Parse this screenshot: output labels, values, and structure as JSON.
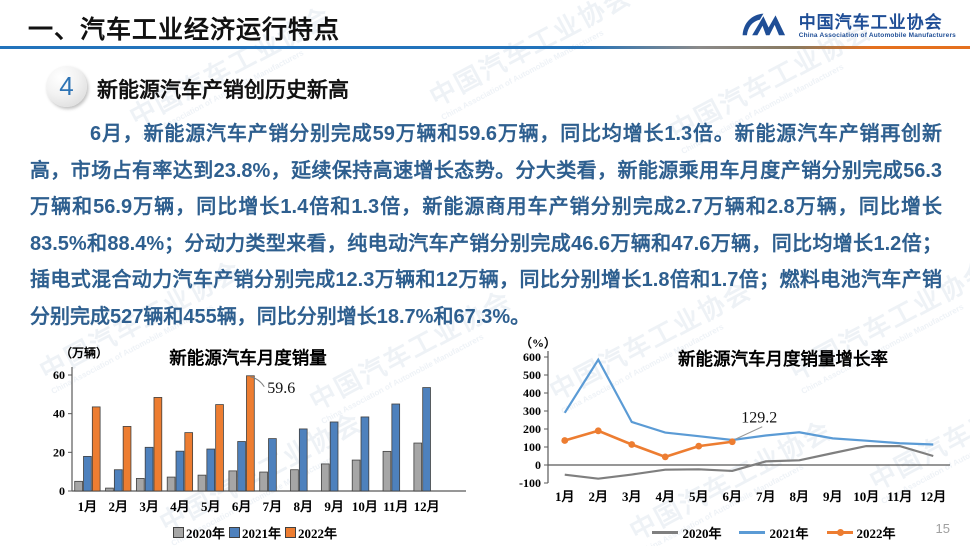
{
  "header": {
    "title": "一、汽车工业经济运行特点",
    "logo": {
      "name_cn": "中国汽车工业协会",
      "name_en": "China Association of Automobile Manufacturers"
    }
  },
  "section": {
    "number": "4",
    "title": "新能源汽车产销创历史新高"
  },
  "paragraph": "6月，新能源汽车产销分别完成59万辆和59.6万辆，同比均增长1.3倍。新能源汽车产销再创新高，市场占有率达到23.8%，延续保持高速增长态势。分大类看，新能源乘用车月度产销分别完成56.3万辆和56.9万辆，同比增长1.4倍和1.3倍，新能源商用车产销分别完成2.7万辆和2.8万辆，同比增长83.5%和88.4%；分动力类型来看，纯电动汽车产销分别完成46.6万辆和47.6万辆，同比均增长1.2倍；插电式混合动力汽车产销分别完成12.3万辆和12万辆，同比分别增长1.8倍和1.7倍；燃料电池汽车产销分别完成527辆和455辆，同比分别增长18.7%和67.3%。",
  "watermark": "中国汽车工业协会",
  "watermark_en": "China Association of Automobile Manufacturers",
  "page_number": "15",
  "colors": {
    "accent_blue": "#2273bb",
    "text_blue": "#2e5f8f",
    "logo_blue": "#1f4e96",
    "gray_2020_bar": "#a6a6a6",
    "blue_2021_bar": "#4e81bd",
    "orange_2022": "#ed7d31",
    "gray_2020_line": "#7f7f7f",
    "blue_2021_line": "#5b9bd5"
  },
  "chart_data": [
    {
      "type": "bar",
      "title": "新能源汽车月度销量",
      "unit": "（万辆）",
      "categories": [
        "1月",
        "2月",
        "3月",
        "4月",
        "5月",
        "6月",
        "7月",
        "8月",
        "9月",
        "10月",
        "11月",
        "12月"
      ],
      "series": [
        {
          "name": "2020年",
          "color": "#a6a6a6",
          "values": [
            5,
            1.5,
            6.5,
            7.2,
            8.2,
            10.4,
            9.8,
            11,
            14,
            16,
            20.5,
            24.8
          ]
        },
        {
          "name": "2021年",
          "color": "#4e81bd",
          "values": [
            17.9,
            11,
            22.6,
            20.6,
            21.7,
            25.6,
            27.1,
            32.1,
            35.7,
            38.3,
            45,
            53.5
          ]
        },
        {
          "name": "2022年",
          "color": "#ed7d31",
          "values": [
            43.5,
            33.4,
            48.4,
            30.2,
            44.7,
            59.6,
            null,
            null,
            null,
            null,
            null,
            null
          ]
        }
      ],
      "ylim": [
        0,
        60
      ],
      "yticks": [
        0,
        20,
        40,
        60
      ],
      "annotation": {
        "text": "59.6",
        "category": "6月",
        "series": "2022年"
      },
      "grid": false,
      "legend_position": "bottom"
    },
    {
      "type": "line",
      "title": "新能源汽车月度销量增长率",
      "unit": "（%）",
      "categories": [
        "1月",
        "2月",
        "3月",
        "4月",
        "5月",
        "6月",
        "7月",
        "8月",
        "9月",
        "10月",
        "11月",
        "12月"
      ],
      "series": [
        {
          "name": "2020年",
          "color": "#7f7f7f",
          "marker": false,
          "values": [
            -54,
            -76,
            -53,
            -26,
            -24,
            -33,
            20,
            26,
            66,
            105,
            105,
            50
          ]
        },
        {
          "name": "2021年",
          "color": "#5b9bd5",
          "marker": false,
          "values": [
            290,
            585,
            239,
            180,
            160,
            139,
            164,
            182,
            148,
            135,
            121,
            114
          ]
        },
        {
          "name": "2022年",
          "color": "#ed7d31",
          "marker": true,
          "values": [
            136,
            190,
            114,
            45,
            105,
            129.2,
            null,
            null,
            null,
            null,
            null,
            null
          ]
        }
      ],
      "ylim": [
        -100,
        600
      ],
      "yticks": [
        -100,
        0,
        100,
        200,
        300,
        400,
        500,
        600
      ],
      "annotation": {
        "text": "129.2",
        "category": "6月",
        "series": "2022年"
      },
      "grid": false,
      "legend_position": "bottom"
    }
  ]
}
